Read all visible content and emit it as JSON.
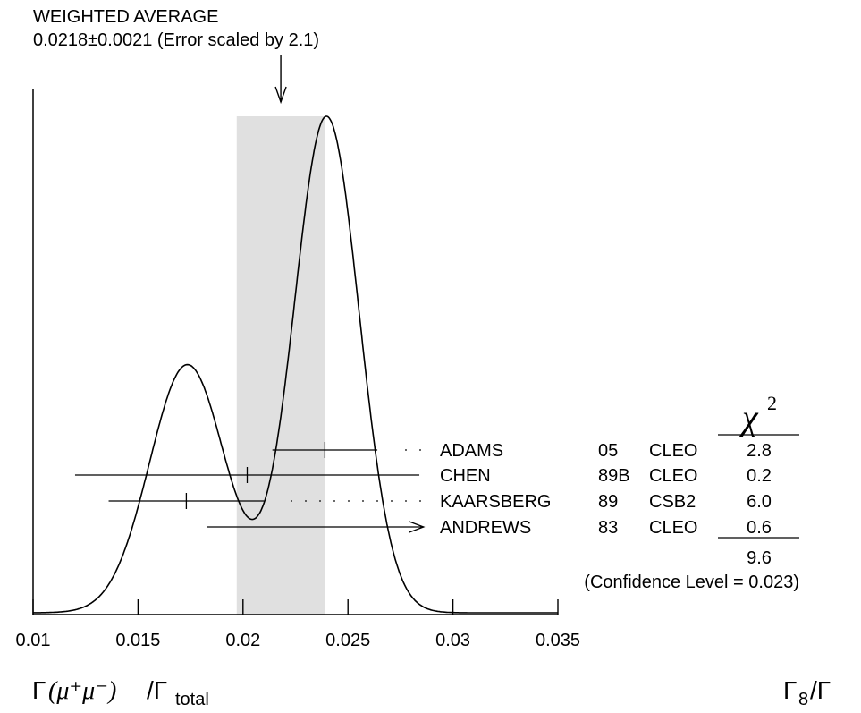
{
  "chart_data": {
    "type": "ideogram",
    "header": {
      "title": "WEIGHTED AVERAGE",
      "subtitle": "0.0218±0.0021 (Error scaled by 2.1)"
    },
    "weighted_average": {
      "value": 0.0218,
      "error": 0.0021,
      "scale_factor": 2.1
    },
    "x_axis": {
      "range": [
        0.01,
        0.035
      ],
      "ticks": [
        0.01,
        0.015,
        0.02,
        0.025,
        0.03,
        0.035
      ],
      "tick_labels": [
        "0.01",
        "0.015",
        "0.02",
        "0.025",
        "0.03",
        "0.035"
      ],
      "label_main": "Γ",
      "label_particles": "(μ⁺μ⁻)",
      "label_over": "/Γ",
      "label_sub": "total",
      "right_label": "Γ",
      "right_label_sub": "8",
      "right_label_over": "/Γ"
    },
    "measurements": [
      {
        "author": "ADAMS",
        "year": "05",
        "experiment": "CLEO",
        "chi2": "2.8",
        "value": 0.0239,
        "error": 0.0025,
        "arrow": false
      },
      {
        "author": "CHEN",
        "year": "89B",
        "experiment": "CLEO",
        "chi2": "0.2",
        "value": 0.0202,
        "error": 0.0082,
        "arrow": false
      },
      {
        "author": "KAARSBERG",
        "year": "89",
        "experiment": "CSB2",
        "chi2": "6.0",
        "value": 0.0173,
        "error": 0.0037,
        "arrow": false
      },
      {
        "author": "ANDREWS",
        "year": "83",
        "experiment": "CLEO",
        "chi2": "0.6",
        "value": 0.0183,
        "error": 0.0,
        "arrow": true,
        "arrow_to": 0.0286
      }
    ],
    "chi2_header": "χ",
    "chi2_power": "2",
    "chi2_total": "9.6",
    "confidence_level": "(Confidence Level = 0.023)",
    "ideogram_peaks": [
      {
        "center": 0.01735,
        "sigma": 0.0018,
        "height": 0.5
      },
      {
        "center": 0.02398,
        "sigma": 0.00155,
        "height": 1.0
      }
    ]
  }
}
